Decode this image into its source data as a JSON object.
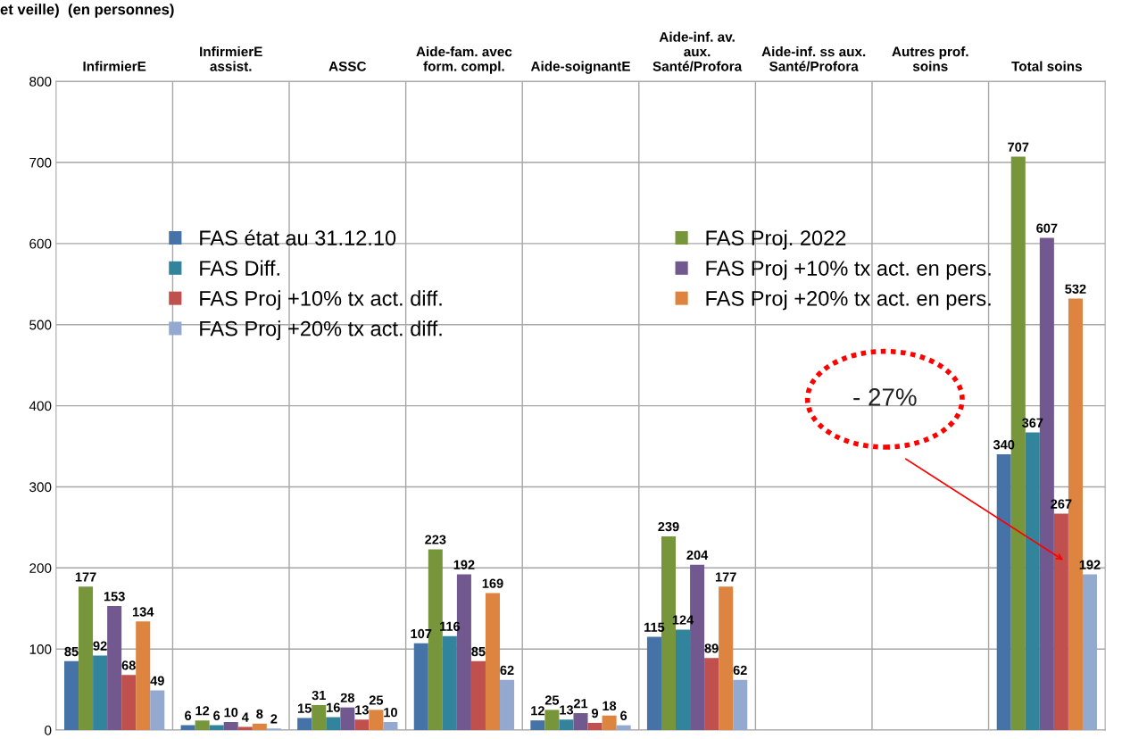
{
  "chart_data": {
    "type": "bar",
    "title": "et veille)  (en personnes)",
    "categories": [
      "InfirmierE",
      "InfirmierE\nassist.",
      "ASSC",
      "Aide-fam. avec\nform. compl.",
      "Aide-soignantE",
      "Aide-inf. av.\naux.\nSanté/Profora",
      "Aide-inf. ss aux.\nSanté/Profora",
      "Autres prof.\nsoins",
      "Total soins"
    ],
    "series": [
      {
        "name": "FAS état au 31.12.10",
        "color": "#4572a7",
        "values": [
          85,
          6,
          15,
          107,
          12,
          115,
          null,
          null,
          340
        ]
      },
      {
        "name": "FAS Proj. 2022",
        "color": "#77963b",
        "values": [
          177,
          12,
          31,
          223,
          25,
          239,
          null,
          null,
          707
        ]
      },
      {
        "name": "FAS Diff.",
        "color": "#31849b",
        "values": [
          92,
          6,
          16,
          116,
          13,
          124,
          null,
          null,
          367
        ]
      },
      {
        "name": "FAS Proj +10% tx act. en pers.",
        "color": "#71588f",
        "values": [
          153,
          10,
          28,
          192,
          21,
          204,
          null,
          null,
          607
        ]
      },
      {
        "name": "FAS Proj +10% tx act. diff.",
        "color": "#c0504d",
        "values": [
          68,
          4,
          13,
          85,
          9,
          89,
          null,
          null,
          267
        ]
      },
      {
        "name": "FAS Proj +20% tx act. en pers.",
        "color": "#dd8440",
        "values": [
          134,
          8,
          25,
          169,
          18,
          177,
          null,
          null,
          532
        ]
      },
      {
        "name": "FAS Proj +20% tx act. diff.",
        "color": "#93a9cf",
        "values": [
          49,
          2,
          10,
          62,
          6,
          62,
          null,
          null,
          192
        ]
      }
    ],
    "ylim": [
      0,
      800
    ],
    "yticks": [
      0,
      100,
      200,
      300,
      400,
      500,
      600,
      700,
      800
    ],
    "grid": true,
    "legend": "top",
    "data_labels": true,
    "annotations": [
      "- 27%"
    ]
  }
}
